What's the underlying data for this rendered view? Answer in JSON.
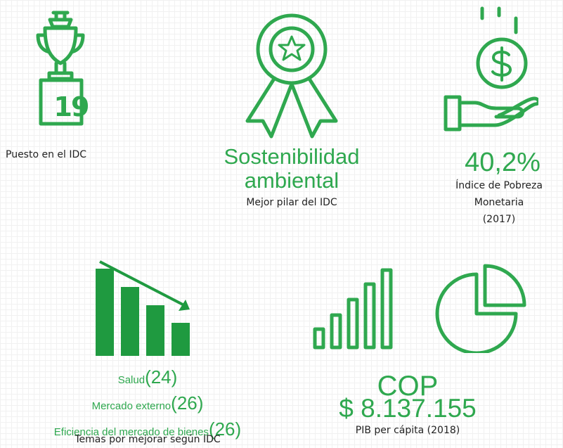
{
  "rank": {
    "number": "19",
    "caption": "Puesto en el IDC"
  },
  "pillar": {
    "title_lines": [
      "Sostenibilidad",
      "ambiental"
    ],
    "caption": "Mejor pilar del IDC"
  },
  "poverty": {
    "value": "40,2%",
    "caption_lines": [
      "Índice de Pobreza",
      "Monetaria",
      "(2017)"
    ]
  },
  "improve": {
    "items": [
      {
        "name": "Salud",
        "score": "(24)"
      },
      {
        "name": "Mercado externo",
        "score": "(26)"
      },
      {
        "name": "Eficiencia del mercado de bienes",
        "score": "(26)"
      }
    ],
    "caption": "Temas por mejorar según IDC"
  },
  "gdp": {
    "currency": "COP",
    "value": "$ 8.137.155",
    "caption": "PIB per cápita (2018)"
  }
}
